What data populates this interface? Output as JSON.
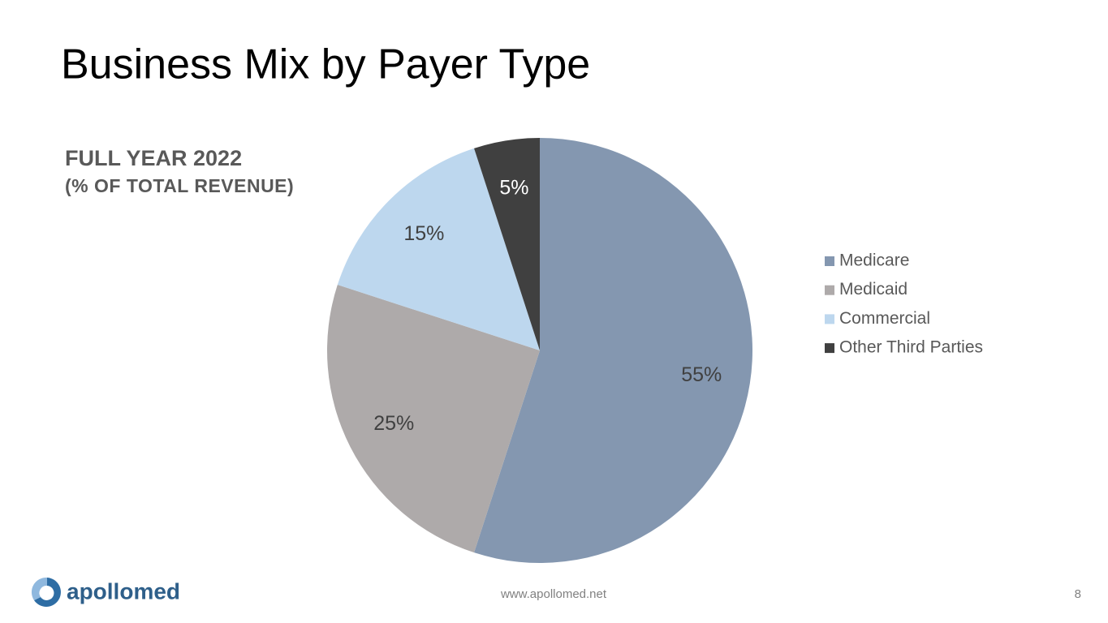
{
  "chart_data": {
    "type": "pie",
    "title": "Business Mix by Payer Type",
    "subtitle": [
      "FULL YEAR 2022",
      "(% OF TOTAL REVENUE)"
    ],
    "categories": [
      "Medicare",
      "Medicaid",
      "Commercial",
      "Other Third Parties"
    ],
    "values": [
      55,
      25,
      15,
      5
    ],
    "value_labels": [
      "55%",
      "25%",
      "15%",
      "5%"
    ],
    "colors": [
      "#8497b0",
      "#aeaaaa",
      "#bdd7ee",
      "#404040"
    ],
    "legend": "right"
  },
  "footer": {
    "logo": "apollomed",
    "url": "www.apollomed.net",
    "page": "8"
  }
}
